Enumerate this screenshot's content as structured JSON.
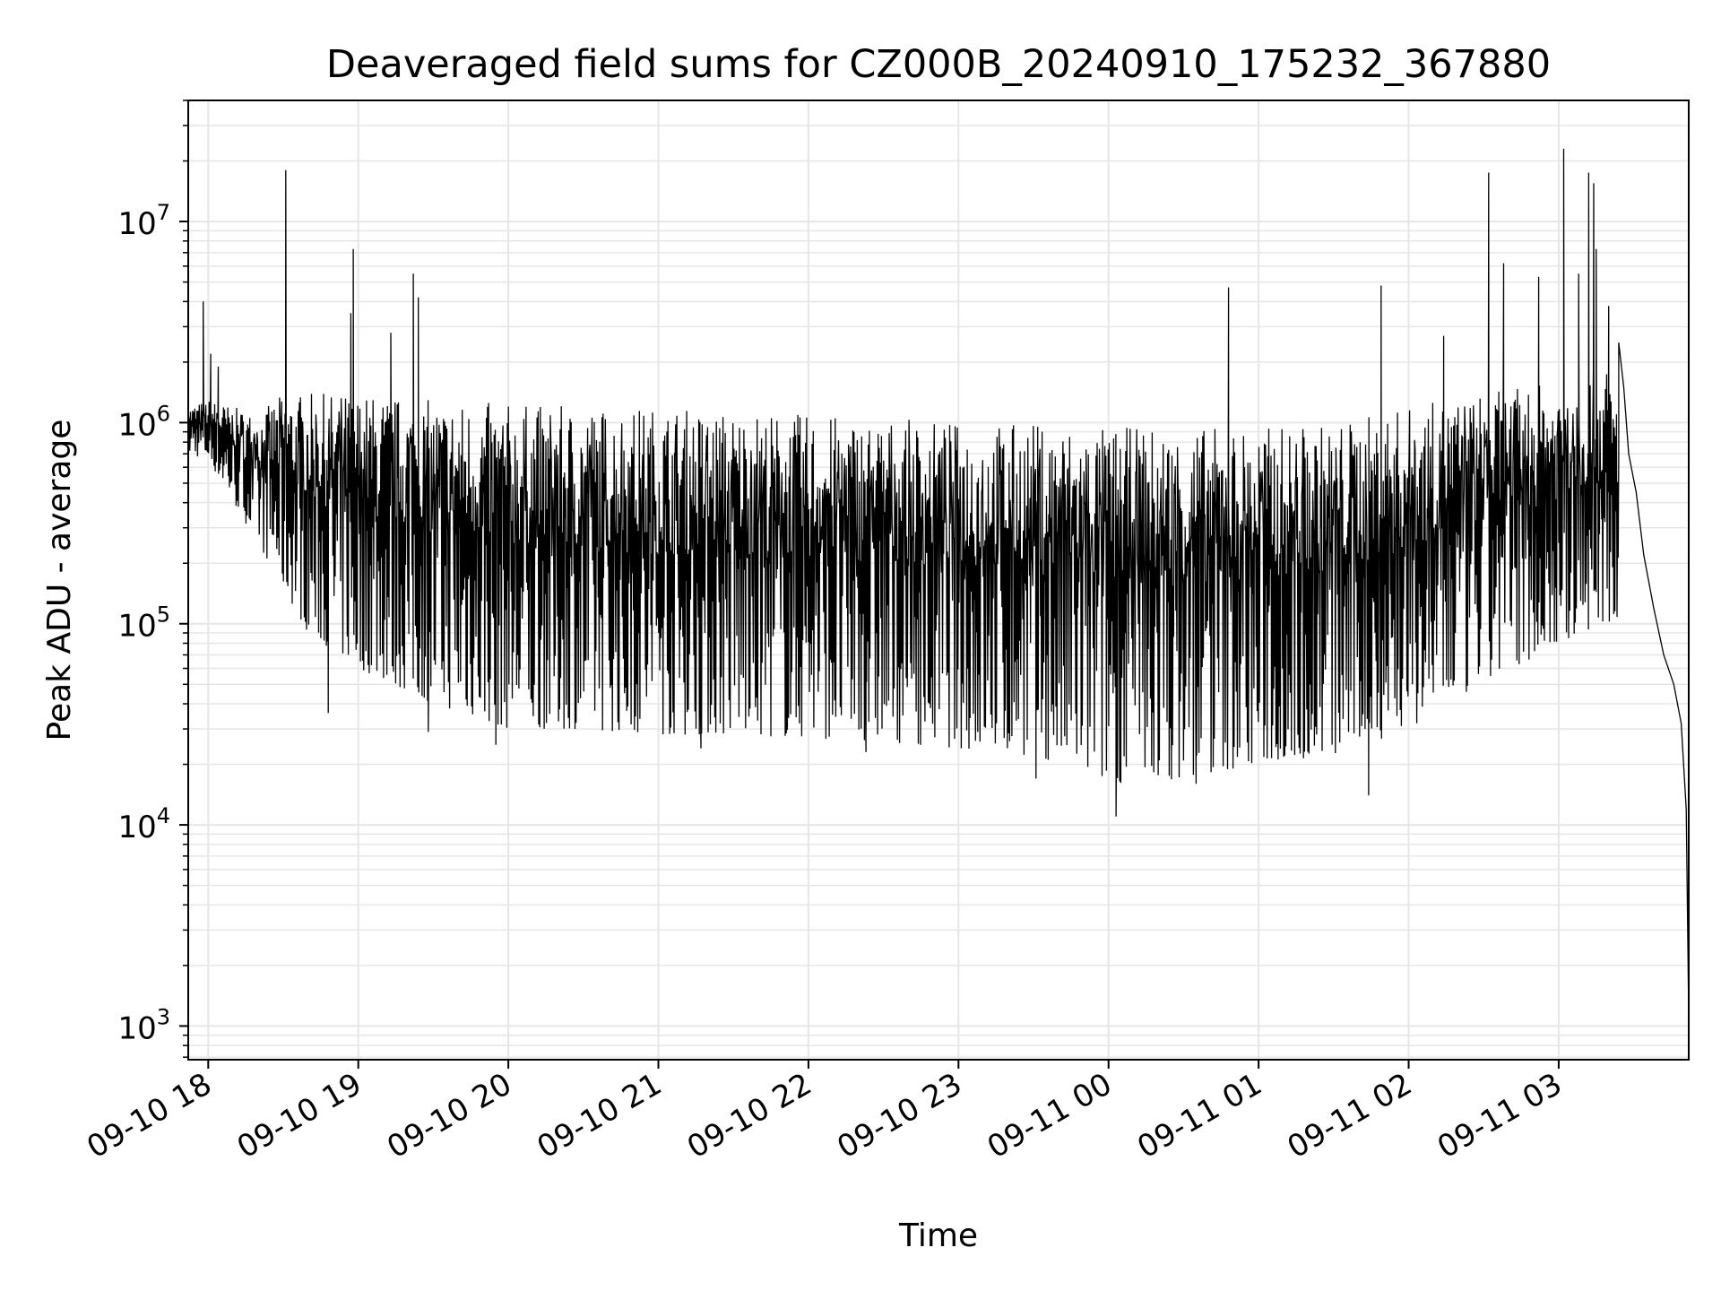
{
  "chart_data": {
    "type": "line",
    "title": "Deaveraged field sums for CZ000B_20240910_175232_367880",
    "xlabel": "Time",
    "ylabel": "Peak ADU - average",
    "yscale": "log",
    "grid": true,
    "line_color": "#000000",
    "grid_color": "#e6e6e6",
    "xlim": [
      "2024-09-10T17:52",
      "2024-09-11T03:52"
    ],
    "ylim": [
      680,
      40000000
    ],
    "x_ticks": [
      {
        "at": "2024-09-10T18:00",
        "label": "09-10 18"
      },
      {
        "at": "2024-09-10T19:00",
        "label": "09-10 19"
      },
      {
        "at": "2024-09-10T20:00",
        "label": "09-10 20"
      },
      {
        "at": "2024-09-10T21:00",
        "label": "09-10 21"
      },
      {
        "at": "2024-09-10T22:00",
        "label": "09-10 22"
      },
      {
        "at": "2024-09-10T23:00",
        "label": "09-10 23"
      },
      {
        "at": "2024-09-11T00:00",
        "label": "09-11 00"
      },
      {
        "at": "2024-09-11T01:00",
        "label": "09-11 01"
      },
      {
        "at": "2024-09-11T02:00",
        "label": "09-11 02"
      },
      {
        "at": "2024-09-11T03:00",
        "label": "09-11 03"
      }
    ],
    "y_ticks": [
      {
        "value": 1000,
        "base": "10",
        "exp": "3"
      },
      {
        "value": 10000,
        "base": "10",
        "exp": "4"
      },
      {
        "value": 100000,
        "base": "10",
        "exp": "5"
      },
      {
        "value": 1000000,
        "base": "10",
        "exp": "6"
      },
      {
        "value": 10000000,
        "base": "10",
        "exp": "7"
      }
    ],
    "series": [
      {
        "envelope": {
          "x": [
            "2024-09-10T17:52",
            "2024-09-10T18:00",
            "2024-09-10T18:10",
            "2024-09-10T18:20",
            "2024-09-10T18:30",
            "2024-09-10T18:40",
            "2024-09-10T19:00",
            "2024-09-10T19:30",
            "2024-09-10T20:00",
            "2024-09-10T20:30",
            "2024-09-10T21:00",
            "2024-09-10T21:30",
            "2024-09-10T22:00",
            "2024-09-10T22:30",
            "2024-09-10T23:00",
            "2024-09-10T23:30",
            "2024-09-11T00:00",
            "2024-09-11T00:30",
            "2024-09-11T01:00",
            "2024-09-11T01:30",
            "2024-09-11T02:00",
            "2024-09-11T02:30",
            "2024-09-11T03:00",
            "2024-09-11T03:20",
            "2024-09-11T03:30"
          ],
          "upper": [
            1200000,
            1300000,
            1200000,
            1100000,
            1400000,
            1400000,
            1400000,
            1300000,
            1250000,
            1200000,
            1200000,
            1150000,
            1100000,
            1050000,
            1000000,
            1000000,
            950000,
            950000,
            950000,
            1000000,
            1200000,
            1400000,
            1600000,
            1900000,
            700000
          ],
          "lower": [
            700000,
            650000,
            400000,
            250000,
            150000,
            90000,
            60000,
            40000,
            30000,
            30000,
            28000,
            28000,
            27000,
            26000,
            24000,
            22000,
            16000,
            17000,
            20000,
            22000,
            30000,
            50000,
            80000,
            100000,
            80000
          ]
        },
        "spikes": [
          {
            "x": "2024-09-10T17:58",
            "value": 4000000
          },
          {
            "x": "2024-09-10T18:01",
            "value": 2200000
          },
          {
            "x": "2024-09-10T18:04",
            "value": 1900000
          },
          {
            "x": "2024-09-10T18:31",
            "value": 18000000
          },
          {
            "x": "2024-09-10T18:57",
            "value": 3500000
          },
          {
            "x": "2024-09-10T18:58",
            "value": 7300000
          },
          {
            "x": "2024-09-10T19:13",
            "value": 2800000
          },
          {
            "x": "2024-09-10T19:22",
            "value": 5500000
          },
          {
            "x": "2024-09-10T19:24",
            "value": 4200000
          },
          {
            "x": "2024-09-11T00:48",
            "value": 4700000
          },
          {
            "x": "2024-09-11T01:49",
            "value": 4800000
          },
          {
            "x": "2024-09-11T02:14",
            "value": 2700000
          },
          {
            "x": "2024-09-11T02:32",
            "value": 17500000
          },
          {
            "x": "2024-09-11T02:38",
            "value": 6200000
          },
          {
            "x": "2024-09-11T02:52",
            "value": 5300000
          },
          {
            "x": "2024-09-11T03:02",
            "value": 23000000
          },
          {
            "x": "2024-09-11T03:08",
            "value": 5500000
          },
          {
            "x": "2024-09-11T03:12",
            "value": 17500000
          },
          {
            "x": "2024-09-11T03:14",
            "value": 15500000
          },
          {
            "x": "2024-09-11T03:15",
            "value": 7300000
          },
          {
            "x": "2024-09-11T03:20",
            "value": 3800000
          }
        ],
        "dips": [
          {
            "x": "2024-09-10T18:48",
            "value": 36000
          },
          {
            "x": "2024-09-10T19:28",
            "value": 29000
          },
          {
            "x": "2024-09-10T19:55",
            "value": 25000
          },
          {
            "x": "2024-09-10T21:17",
            "value": 24000
          },
          {
            "x": "2024-09-10T22:23",
            "value": 23000
          },
          {
            "x": "2024-09-10T23:31",
            "value": 17000
          },
          {
            "x": "2024-09-11T00:03",
            "value": 11000
          },
          {
            "x": "2024-09-11T00:35",
            "value": 16000
          },
          {
            "x": "2024-09-11T01:44",
            "value": 14000
          }
        ],
        "tail": {
          "x": [
            "2024-09-11T03:24",
            "2024-09-11T03:26",
            "2024-09-11T03:28",
            "2024-09-11T03:31",
            "2024-09-11T03:34",
            "2024-09-11T03:38",
            "2024-09-11T03:42",
            "2024-09-11T03:46",
            "2024-09-11T03:49",
            "2024-09-11T03:51",
            "2024-09-11T03:52"
          ],
          "values": [
            2500000,
            1500000,
            700000,
            450000,
            220000,
            120000,
            70000,
            50000,
            32000,
            12000,
            1100
          ]
        }
      }
    ]
  }
}
